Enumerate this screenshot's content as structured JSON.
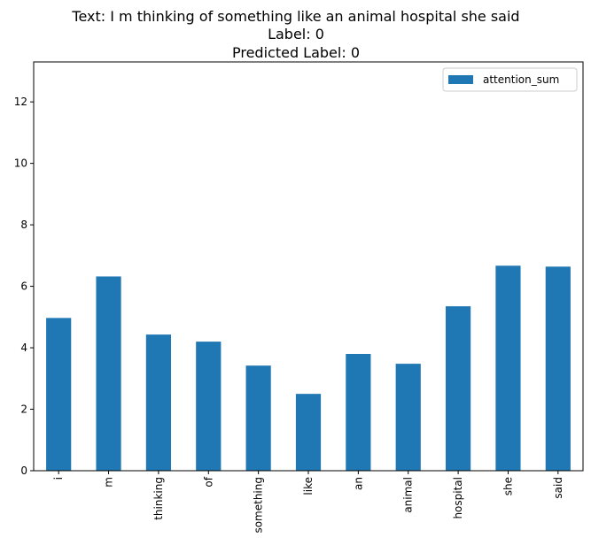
{
  "chart_data": {
    "type": "bar",
    "title": [
      "Text: I m thinking of something like an animal hospital she said",
      "Label: 0",
      "Predicted Label: 0"
    ],
    "categories": [
      "i",
      "m",
      "thinking",
      "of",
      "something",
      "like",
      "an",
      "animal",
      "hospital",
      "she",
      "said"
    ],
    "series": [
      {
        "name": "attention_sum",
        "values": [
          4.97,
          6.32,
          4.43,
          4.2,
          3.42,
          2.5,
          3.8,
          3.48,
          5.35,
          6.67,
          6.64
        ],
        "color": "#1f77b4"
      }
    ],
    "yticks": [
      0,
      2,
      4,
      6,
      8,
      10,
      12
    ],
    "ylim": [
      0,
      13.3
    ],
    "xlabel": "",
    "ylabel": "",
    "legend_position": "top-right",
    "grid": false
  }
}
